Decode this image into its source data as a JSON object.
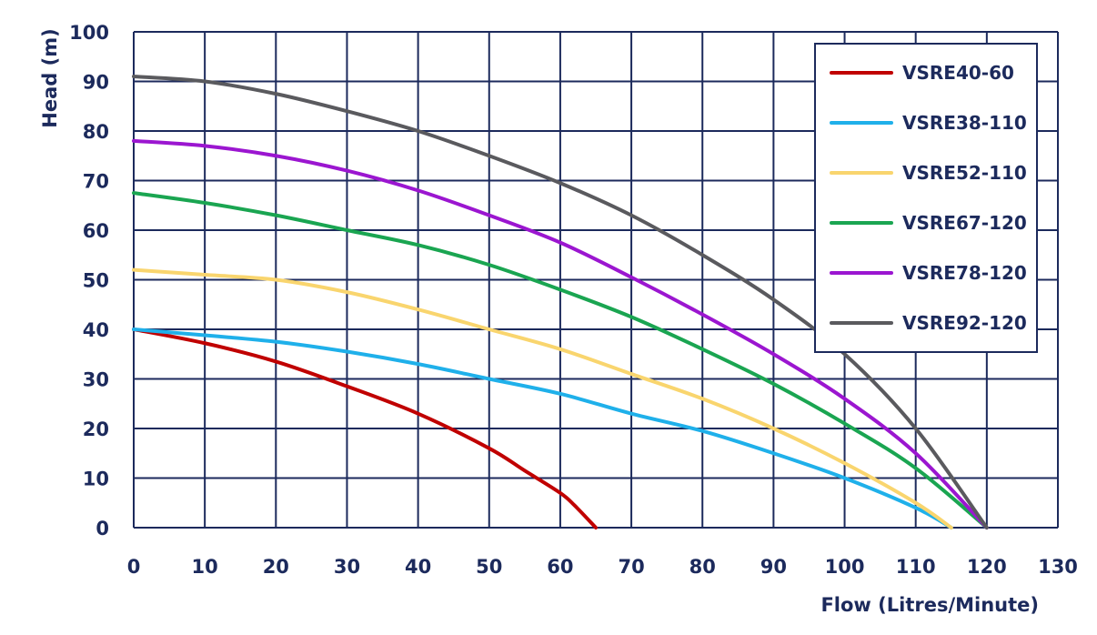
{
  "chart_data": {
    "type": "line",
    "title": "",
    "xlabel": "Flow (Litres/Minute)",
    "ylabel": "Head (m)",
    "xlim": [
      0,
      130
    ],
    "ylim": [
      0,
      100
    ],
    "x_ticks": [
      0,
      10,
      20,
      30,
      40,
      50,
      60,
      70,
      80,
      90,
      100,
      110,
      120,
      130
    ],
    "y_ticks": [
      0,
      10,
      20,
      30,
      40,
      50,
      60,
      70,
      80,
      90,
      100
    ],
    "grid": true,
    "legend_position": "top-right",
    "series": [
      {
        "name": "VSRE40-60",
        "color": "#c00000",
        "points": [
          [
            0,
            40
          ],
          [
            10,
            37.2
          ],
          [
            20,
            33.5
          ],
          [
            30,
            28.5
          ],
          [
            40,
            23
          ],
          [
            50,
            16
          ],
          [
            55,
            11.5
          ],
          [
            60,
            7
          ],
          [
            62,
            4.5
          ],
          [
            65,
            0
          ]
        ]
      },
      {
        "name": "VSRE38-110",
        "color": "#1fb0ea",
        "points": [
          [
            0,
            40
          ],
          [
            10,
            38.8
          ],
          [
            20,
            37.5
          ],
          [
            30,
            35.5
          ],
          [
            40,
            33
          ],
          [
            50,
            30
          ],
          [
            60,
            27
          ],
          [
            70,
            23
          ],
          [
            80,
            19.5
          ],
          [
            90,
            15
          ],
          [
            100,
            10
          ],
          [
            110,
            4
          ],
          [
            115,
            0
          ]
        ]
      },
      {
        "name": "VSRE52-110",
        "color": "#f9d56e",
        "points": [
          [
            0,
            52
          ],
          [
            10,
            51
          ],
          [
            20,
            50
          ],
          [
            30,
            47.5
          ],
          [
            40,
            44
          ],
          [
            50,
            40
          ],
          [
            60,
            36
          ],
          [
            70,
            31
          ],
          [
            80,
            26
          ],
          [
            90,
            20
          ],
          [
            100,
            13
          ],
          [
            110,
            5
          ],
          [
            115,
            0
          ]
        ]
      },
      {
        "name": "VSRE67-120",
        "color": "#1aa551",
        "points": [
          [
            0,
            67.5
          ],
          [
            10,
            65.5
          ],
          [
            20,
            63
          ],
          [
            30,
            60
          ],
          [
            40,
            57
          ],
          [
            50,
            53
          ],
          [
            60,
            48
          ],
          [
            70,
            42.5
          ],
          [
            80,
            36
          ],
          [
            90,
            29
          ],
          [
            100,
            21
          ],
          [
            110,
            12
          ],
          [
            120,
            0
          ]
        ]
      },
      {
        "name": "VSRE78-120",
        "color": "#9b16d0",
        "points": [
          [
            0,
            78
          ],
          [
            10,
            77
          ],
          [
            20,
            75
          ],
          [
            30,
            72
          ],
          [
            40,
            68
          ],
          [
            50,
            63
          ],
          [
            60,
            57.5
          ],
          [
            70,
            50.5
          ],
          [
            80,
            43
          ],
          [
            90,
            35
          ],
          [
            100,
            26
          ],
          [
            110,
            15
          ],
          [
            120,
            0
          ]
        ]
      },
      {
        "name": "VSRE92-120",
        "color": "#5a5a5e",
        "points": [
          [
            0,
            91
          ],
          [
            10,
            90
          ],
          [
            20,
            87.5
          ],
          [
            30,
            84
          ],
          [
            40,
            80
          ],
          [
            50,
            75
          ],
          [
            60,
            69.5
          ],
          [
            70,
            63
          ],
          [
            80,
            55
          ],
          [
            90,
            46
          ],
          [
            100,
            35
          ],
          [
            110,
            20
          ],
          [
            120,
            0
          ]
        ]
      }
    ]
  },
  "colors": {
    "axis": "#1c2a5c",
    "grid": "#1c2a5c",
    "background": "#ffffff"
  }
}
